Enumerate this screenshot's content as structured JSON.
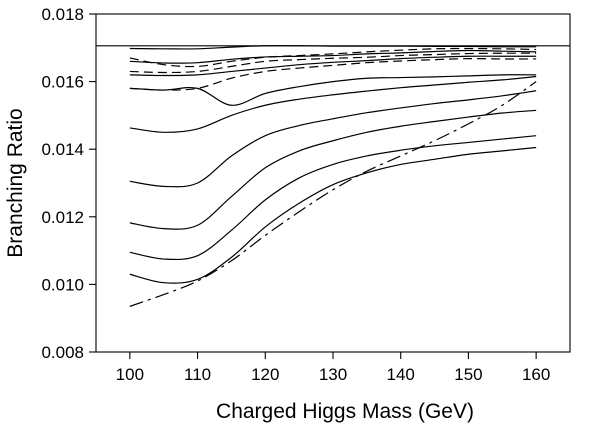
{
  "chart_data": {
    "type": "line",
    "title": "",
    "xlabel": "Charged Higgs Mass (GeV)",
    "ylabel": "Branching Ratio",
    "xlim": [
      95,
      165
    ],
    "ylim": [
      0.008,
      0.018
    ],
    "xticks": [
      100,
      110,
      120,
      130,
      140,
      150,
      160
    ],
    "yticks": [
      0.008,
      0.01,
      0.012,
      0.014,
      0.016,
      0.018
    ],
    "xtick_labels": [
      "100",
      "110",
      "120",
      "130",
      "140",
      "150",
      "160"
    ],
    "ytick_labels": [
      "0.008",
      "0.010",
      "0.012",
      "0.014",
      "0.016",
      "0.018"
    ],
    "grid": false,
    "legend": "none",
    "reference_line": {
      "y": 0.01706,
      "style": "solid"
    },
    "x": [
      100,
      105,
      110,
      115,
      120,
      125,
      130,
      135,
      140,
      145,
      150,
      155,
      160
    ],
    "series": [
      {
        "style": "solid",
        "values": [
          0.01698,
          0.01697,
          0.01697,
          0.01702,
          0.01706,
          0.01706,
          0.01705,
          0.01705,
          0.01705,
          0.01704,
          0.01704,
          0.01703,
          0.01703
        ]
      },
      {
        "style": "dashed",
        "values": [
          0.0167,
          0.0165,
          0.01645,
          0.0166,
          0.01672,
          0.01677,
          0.01682,
          0.01688,
          0.01693,
          0.01697,
          0.01698,
          0.01697,
          0.01695
        ]
      },
      {
        "style": "solid",
        "values": [
          0.0166,
          0.01655,
          0.01656,
          0.01666,
          0.01673,
          0.01675,
          0.01677,
          0.01682,
          0.01685,
          0.01689,
          0.01692,
          0.0169,
          0.01688
        ]
      },
      {
        "style": "dashed",
        "values": [
          0.0163,
          0.01627,
          0.0163,
          0.01645,
          0.0166,
          0.01665,
          0.01669,
          0.01672,
          0.01677,
          0.0168,
          0.01683,
          0.01684,
          0.01684
        ]
      },
      {
        "style": "solid",
        "values": [
          0.0162,
          0.01618,
          0.0162,
          0.0163,
          0.0164,
          0.0165,
          0.01657,
          0.01662,
          0.01668,
          0.01672,
          0.01675,
          0.01675,
          0.01675
        ]
      },
      {
        "style": "dashed",
        "values": [
          0.0158,
          0.01575,
          0.0158,
          0.0161,
          0.0163,
          0.0164,
          0.01648,
          0.01656,
          0.01661,
          0.01665,
          0.01668,
          0.01667,
          0.01667
        ]
      },
      {
        "style": "solid",
        "values": [
          0.0158,
          0.01575,
          0.0158,
          0.0153,
          0.01565,
          0.01585,
          0.016,
          0.0161,
          0.01612,
          0.01614,
          0.01617,
          0.0162,
          0.0162
        ]
      },
      {
        "style": "solid",
        "values": [
          0.01463,
          0.0145,
          0.0146,
          0.015,
          0.0153,
          0.01548,
          0.01561,
          0.01572,
          0.01582,
          0.0159,
          0.01598,
          0.01605,
          0.01615
        ]
      },
      {
        "style": "solid",
        "values": [
          0.01305,
          0.0129,
          0.013,
          0.0138,
          0.0144,
          0.0147,
          0.0149,
          0.01508,
          0.01522,
          0.01535,
          0.01546,
          0.01558,
          0.01573
        ]
      },
      {
        "style": "solid",
        "values": [
          0.01182,
          0.01165,
          0.01175,
          0.0126,
          0.01345,
          0.01395,
          0.01425,
          0.0145,
          0.01468,
          0.01482,
          0.01495,
          0.01507,
          0.01515
        ]
      },
      {
        "style": "solid",
        "values": [
          0.01095,
          0.01075,
          0.01085,
          0.0116,
          0.0125,
          0.01315,
          0.01355,
          0.0138,
          0.01397,
          0.0141,
          0.0142,
          0.0143,
          0.0144
        ]
      },
      {
        "style": "solid",
        "values": [
          0.0103,
          0.01005,
          0.01015,
          0.0108,
          0.0117,
          0.0124,
          0.01295,
          0.0133,
          0.01355,
          0.0137,
          0.01385,
          0.01395,
          0.01405
        ]
      },
      {
        "style": "dashdot",
        "values": [
          0.00935,
          0.0097,
          0.0101,
          0.0107,
          0.01145,
          0.01215,
          0.0128,
          0.01335,
          0.0138,
          0.01425,
          0.01475,
          0.0153,
          0.016
        ]
      }
    ],
    "colors": {
      "line": "#000000",
      "background": "#ffffff"
    }
  }
}
